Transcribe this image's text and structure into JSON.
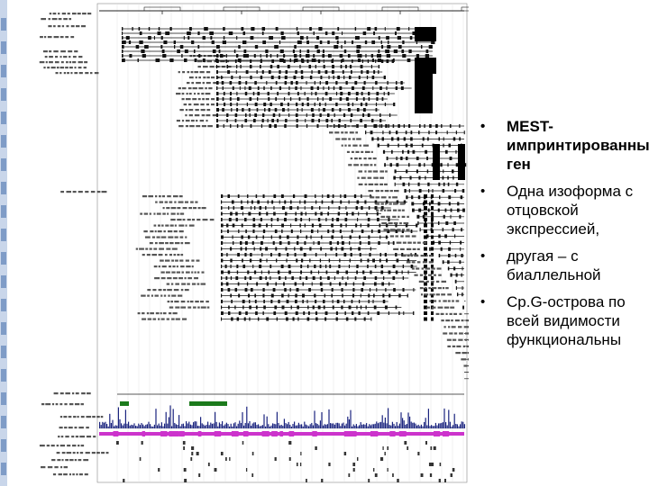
{
  "bullets": [
    {
      "text": "MEST-импринтированный ген",
      "bold": true
    },
    {
      "text": "Одна изоформа с отцовской экспрессией,",
      "bold": false
    },
    {
      "text": "другая – с биаллельной",
      "bold": false
    },
    {
      "text": "Cp.G-острова по всей видимости функциональны",
      "bold": false
    }
  ],
  "colors": {
    "conservation": "#1a237e",
    "repeat_track": "#cc33cc",
    "cpg_island": "#1b7a1b",
    "gene_ink": "#111111"
  }
}
